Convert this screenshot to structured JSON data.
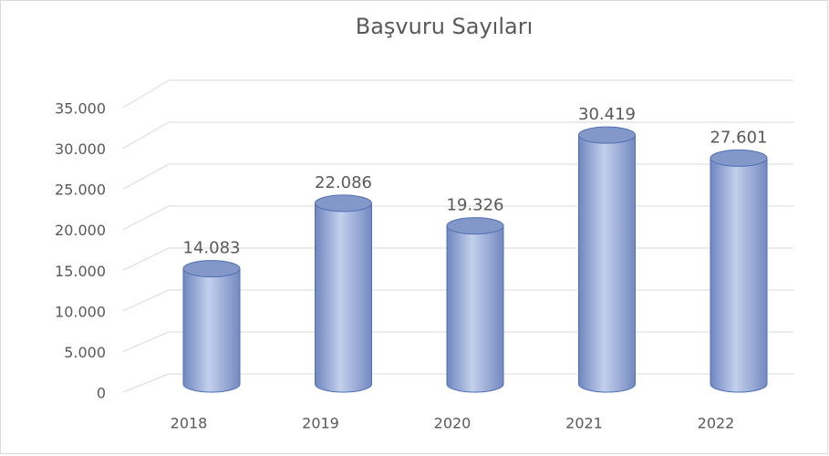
{
  "chart_data": {
    "type": "bar",
    "title": "Başvuru Sayıları",
    "categories": [
      "2018",
      "2019",
      "2020",
      "2021",
      "2022"
    ],
    "values": [
      14083,
      22086,
      19326,
      30419,
      27601
    ],
    "value_labels": [
      "14.083",
      "22.086",
      "19.326",
      "30.419",
      "27.601"
    ],
    "color": "#8ea2d0",
    "ylim": [
      0,
      35000
    ],
    "yticks": [
      0,
      {
        "value": 5000,
        "label": "5.000"
      },
      {
        "value": 10000,
        "label": "10.000"
      },
      {
        "value": 15000,
        "label": "15.000"
      },
      {
        "value": 20000,
        "label": "20.000"
      },
      {
        "value": 25000,
        "label": "25.000"
      },
      {
        "value": 30000,
        "label": "30.000"
      },
      {
        "value": 35000,
        "label": "35.000"
      }
    ],
    "grid": true
  }
}
